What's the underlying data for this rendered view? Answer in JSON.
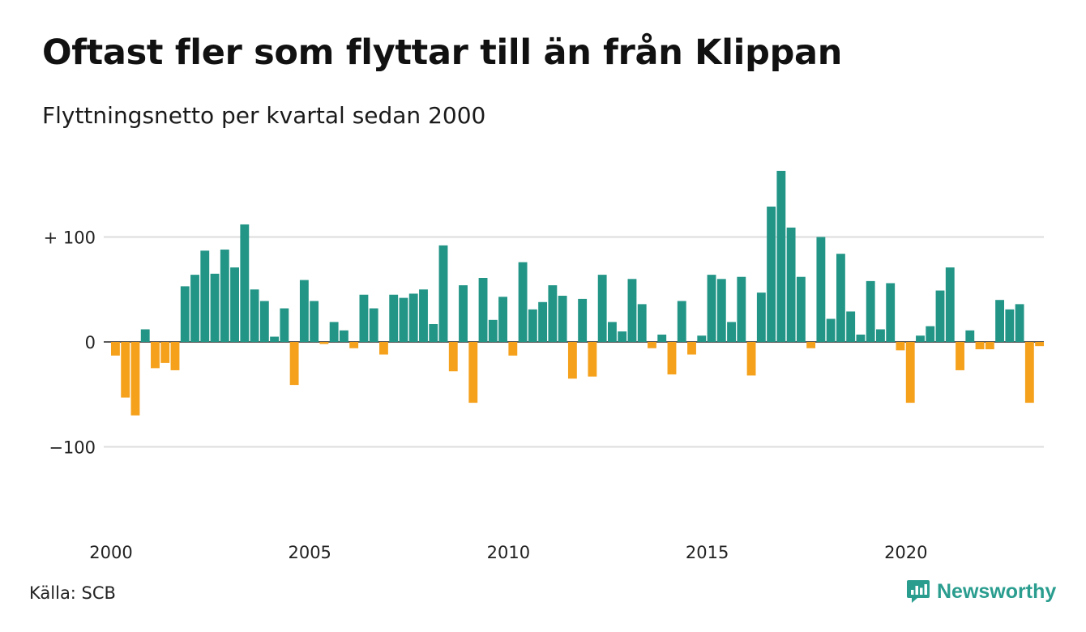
{
  "title": "Oftast fler som flyttar till än från Klippan",
  "subtitle": "Flyttningsnetto per kvartal sedan 2000",
  "source": "Källa: SCB",
  "brand": {
    "name": "Newsworthy",
    "icon": "newsworthy-logo-icon"
  },
  "colors": {
    "positive": "#229587",
    "negative": "#f5a11c",
    "grid": "#dddddd"
  },
  "chart_data": {
    "type": "bar",
    "title": "Oftast fler som flyttar till än från Klippan",
    "subtitle": "Flyttningsnetto per kvartal sedan 2000",
    "ylim": [
      -170,
      170
    ],
    "yticks": [
      {
        "value": 100,
        "label": "+ 100"
      },
      {
        "value": 0,
        "label": "0"
      },
      {
        "value": -100,
        "label": "−100"
      }
    ],
    "xticks": [
      {
        "year": 2000,
        "label": "2000"
      },
      {
        "year": 2005,
        "label": "2005"
      },
      {
        "year": 2010,
        "label": "2010"
      },
      {
        "year": 2015,
        "label": "2015"
      },
      {
        "year": 2020,
        "label": "2020"
      }
    ],
    "grid": true,
    "start_year": 2000,
    "values": [
      -13,
      -53,
      -70,
      12,
      -25,
      -20,
      -27,
      53,
      64,
      87,
      65,
      88,
      71,
      112,
      50,
      39,
      5,
      32,
      -41,
      59,
      39,
      -2,
      19,
      11,
      -6,
      45,
      32,
      -12,
      45,
      42,
      46,
      50,
      17,
      92,
      -28,
      54,
      -58,
      61,
      21,
      43,
      -13,
      76,
      31,
      38,
      54,
      44,
      -35,
      41,
      -33,
      64,
      19,
      10,
      60,
      36,
      -6,
      7,
      -31,
      39,
      -12,
      6,
      64,
      60,
      19,
      62,
      -32,
      47,
      129,
      163,
      109,
      62,
      -6,
      100,
      22,
      84,
      29,
      7,
      58,
      12,
      56,
      -8,
      -58,
      6,
      15,
      49,
      71,
      -27,
      11,
      -7,
      -7,
      40,
      31,
      36,
      -58,
      -4
    ]
  }
}
